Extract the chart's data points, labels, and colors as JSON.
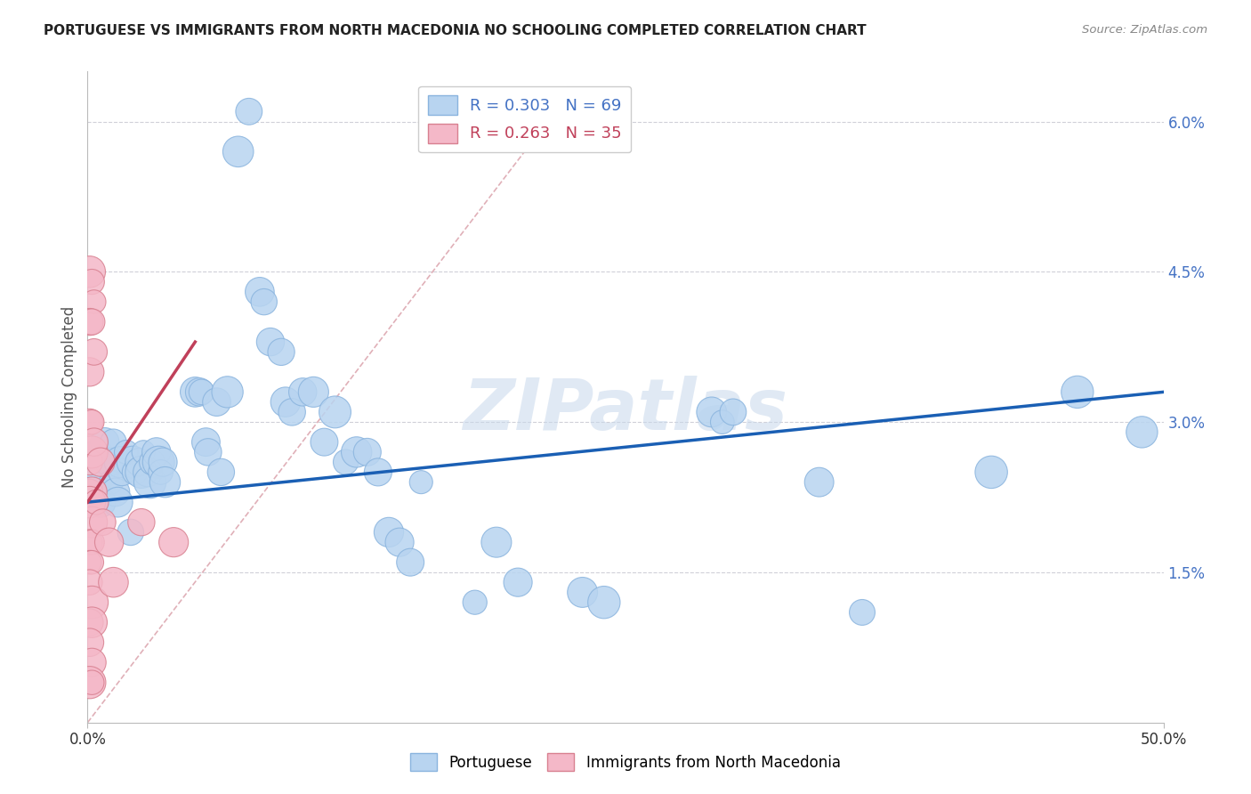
{
  "title": "PORTUGUESE VS IMMIGRANTS FROM NORTH MACEDONIA NO SCHOOLING COMPLETED CORRELATION CHART",
  "source": "Source: ZipAtlas.com",
  "ylabel": "No Schooling Completed",
  "right_yticks": [
    "6.0%",
    "4.5%",
    "3.0%",
    "1.5%"
  ],
  "right_ytick_vals": [
    0.06,
    0.045,
    0.03,
    0.015
  ],
  "xmin": 0.0,
  "xmax": 0.5,
  "ymin": 0.0,
  "ymax": 0.065,
  "blue_color": "#b8d4f0",
  "pink_color": "#f4b8c8",
  "blue_line_color": "#1a5fb4",
  "pink_line_color": "#c0405a",
  "diag_line_color": "#e0b0b8",
  "watermark": "ZIPatlas",
  "blue_R": 0.303,
  "blue_N": 69,
  "pink_R": 0.263,
  "pink_N": 35,
  "blue_scatter": [
    [
      0.003,
      0.026
    ],
    [
      0.004,
      0.024
    ],
    [
      0.005,
      0.027
    ],
    [
      0.006,
      0.022
    ],
    [
      0.007,
      0.025
    ],
    [
      0.008,
      0.028
    ],
    [
      0.01,
      0.026
    ],
    [
      0.011,
      0.024
    ],
    [
      0.012,
      0.028
    ],
    [
      0.013,
      0.023
    ],
    [
      0.014,
      0.022
    ],
    [
      0.015,
      0.026
    ],
    [
      0.016,
      0.025
    ],
    [
      0.018,
      0.027
    ],
    [
      0.02,
      0.019
    ],
    [
      0.021,
      0.026
    ],
    [
      0.022,
      0.025
    ],
    [
      0.024,
      0.026
    ],
    [
      0.025,
      0.025
    ],
    [
      0.026,
      0.027
    ],
    [
      0.028,
      0.025
    ],
    [
      0.029,
      0.024
    ],
    [
      0.03,
      0.026
    ],
    [
      0.032,
      0.027
    ],
    [
      0.033,
      0.026
    ],
    [
      0.034,
      0.025
    ],
    [
      0.035,
      0.026
    ],
    [
      0.036,
      0.024
    ],
    [
      0.05,
      0.033
    ],
    [
      0.052,
      0.033
    ],
    [
      0.053,
      0.033
    ],
    [
      0.055,
      0.028
    ],
    [
      0.056,
      0.027
    ],
    [
      0.06,
      0.032
    ],
    [
      0.062,
      0.025
    ],
    [
      0.065,
      0.033
    ],
    [
      0.07,
      0.057
    ],
    [
      0.075,
      0.061
    ],
    [
      0.08,
      0.043
    ],
    [
      0.082,
      0.042
    ],
    [
      0.085,
      0.038
    ],
    [
      0.09,
      0.037
    ],
    [
      0.092,
      0.032
    ],
    [
      0.095,
      0.031
    ],
    [
      0.1,
      0.033
    ],
    [
      0.105,
      0.033
    ],
    [
      0.11,
      0.028
    ],
    [
      0.115,
      0.031
    ],
    [
      0.12,
      0.026
    ],
    [
      0.125,
      0.027
    ],
    [
      0.13,
      0.027
    ],
    [
      0.135,
      0.025
    ],
    [
      0.14,
      0.019
    ],
    [
      0.145,
      0.018
    ],
    [
      0.15,
      0.016
    ],
    [
      0.155,
      0.024
    ],
    [
      0.18,
      0.012
    ],
    [
      0.19,
      0.018
    ],
    [
      0.2,
      0.014
    ],
    [
      0.23,
      0.013
    ],
    [
      0.24,
      0.012
    ],
    [
      0.29,
      0.031
    ],
    [
      0.295,
      0.03
    ],
    [
      0.3,
      0.031
    ],
    [
      0.34,
      0.024
    ],
    [
      0.36,
      0.011
    ],
    [
      0.42,
      0.025
    ],
    [
      0.46,
      0.033
    ],
    [
      0.49,
      0.029
    ]
  ],
  "pink_scatter": [
    [
      0.001,
      0.045
    ],
    [
      0.002,
      0.044
    ],
    [
      0.003,
      0.042
    ],
    [
      0.001,
      0.04
    ],
    [
      0.002,
      0.04
    ],
    [
      0.001,
      0.035
    ],
    [
      0.003,
      0.037
    ],
    [
      0.001,
      0.03
    ],
    [
      0.002,
      0.03
    ],
    [
      0.001,
      0.026
    ],
    [
      0.002,
      0.027
    ],
    [
      0.001,
      0.023
    ],
    [
      0.002,
      0.023
    ],
    [
      0.001,
      0.022
    ],
    [
      0.002,
      0.02
    ],
    [
      0.001,
      0.018
    ],
    [
      0.002,
      0.018
    ],
    [
      0.001,
      0.016
    ],
    [
      0.002,
      0.016
    ],
    [
      0.001,
      0.014
    ],
    [
      0.002,
      0.012
    ],
    [
      0.001,
      0.01
    ],
    [
      0.002,
      0.01
    ],
    [
      0.001,
      0.008
    ],
    [
      0.002,
      0.006
    ],
    [
      0.001,
      0.004
    ],
    [
      0.002,
      0.004
    ],
    [
      0.003,
      0.028
    ],
    [
      0.004,
      0.022
    ],
    [
      0.006,
      0.026
    ],
    [
      0.007,
      0.02
    ],
    [
      0.01,
      0.018
    ],
    [
      0.012,
      0.014
    ],
    [
      0.025,
      0.02
    ],
    [
      0.04,
      0.018
    ]
  ],
  "blue_line": [
    [
      0.0,
      0.022
    ],
    [
      0.5,
      0.033
    ]
  ],
  "pink_line": [
    [
      0.0,
      0.022
    ],
    [
      0.05,
      0.038
    ]
  ]
}
